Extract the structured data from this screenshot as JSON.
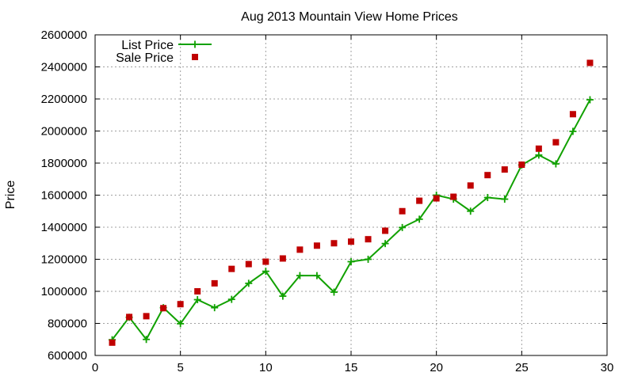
{
  "chart_data": {
    "type": "line",
    "title": "Aug 2013 Mountain View Home Prices",
    "xlabel": "",
    "ylabel": "Price",
    "xlim": [
      0,
      30
    ],
    "ylim": [
      600000,
      2600000
    ],
    "x_ticks": [
      0,
      5,
      10,
      15,
      20,
      25,
      30
    ],
    "y_ticks": [
      600000,
      800000,
      1000000,
      1200000,
      1400000,
      1600000,
      1800000,
      2000000,
      2200000,
      2400000,
      2600000
    ],
    "grid": true,
    "legend_position": "top-left",
    "series": [
      {
        "name": "List Price",
        "style": "line-plus",
        "color": "#11a100",
        "x": [
          1,
          2,
          3,
          4,
          5,
          6,
          7,
          8,
          9,
          10,
          11,
          12,
          13,
          14,
          15,
          16,
          17,
          18,
          19,
          20,
          21,
          22,
          23,
          24,
          25,
          26,
          27,
          28,
          29
        ],
        "values": [
          698000,
          838000,
          700000,
          898000,
          798000,
          948000,
          898000,
          950000,
          1050000,
          1125000,
          970000,
          1098000,
          1098000,
          995000,
          1185000,
          1200000,
          1298000,
          1398000,
          1450000,
          1600000,
          1575000,
          1500000,
          1585000,
          1575000,
          1788000,
          1850000,
          1795000,
          1998000,
          2195000
        ]
      },
      {
        "name": "Sale Price",
        "style": "square",
        "color": "#c00000",
        "x": [
          1,
          2,
          3,
          4,
          5,
          6,
          7,
          8,
          9,
          10,
          11,
          12,
          13,
          14,
          15,
          16,
          17,
          18,
          19,
          20,
          21,
          22,
          23,
          24,
          25,
          26,
          27,
          28,
          29
        ],
        "values": [
          680000,
          840000,
          845000,
          895000,
          920000,
          1000000,
          1050000,
          1140000,
          1170000,
          1185000,
          1205000,
          1260000,
          1285000,
          1300000,
          1310000,
          1325000,
          1378000,
          1500000,
          1565000,
          1580000,
          1590000,
          1660000,
          1725000,
          1760000,
          1790000,
          1890000,
          1930000,
          2105000,
          2425000
        ]
      }
    ]
  }
}
